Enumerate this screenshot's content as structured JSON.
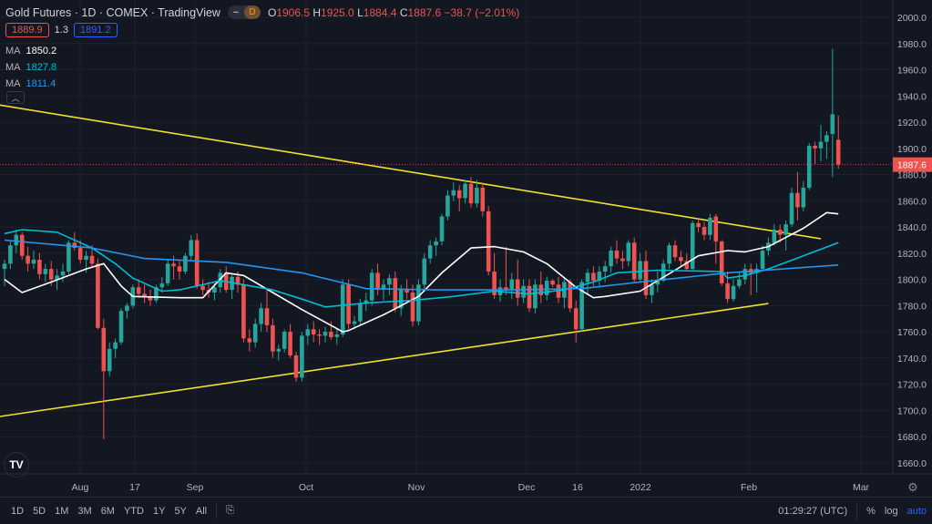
{
  "header": {
    "title": "Gold Futures · 1D · COMEX · TradingView",
    "market_status": "D",
    "open_label": "O",
    "open": "1906.5",
    "high_label": "H",
    "high": "1925.0",
    "low_label": "L",
    "low": "1884.4",
    "close_label": "C",
    "close": "1887.6",
    "change": "−38.7 (−2.01%)"
  },
  "spread": {
    "bid": "1889.9",
    "spread": "1.3",
    "ask": "1891.2"
  },
  "moving_averages": [
    {
      "label": "MA",
      "value": "1850.2",
      "color": "#ffffff"
    },
    {
      "label": "MA",
      "value": "1827.8",
      "color": "#00bcd4"
    },
    {
      "label": "MA",
      "value": "1811.4",
      "color": "#2196f3"
    }
  ],
  "logo": "TV",
  "current_price": "1887.6",
  "colors": {
    "up": "#26a69a",
    "down": "#ef5350",
    "trend": "#f0e130",
    "bg": "#131722"
  },
  "price_ticks": [
    "2000.0",
    "1980.0",
    "1960.0",
    "1940.0",
    "1920.0",
    "1900.0",
    "1880.0",
    "1860.0",
    "1840.0",
    "1820.0",
    "1800.0",
    "1780.0",
    "1760.0",
    "1740.0",
    "1720.0",
    "1700.0",
    "1680.0",
    "1660.0"
  ],
  "time_labels": [
    "Aug",
    "17",
    "Sep",
    "Oct",
    "Nov",
    "Dec",
    "16",
    "2022",
    "Feb",
    "Mar"
  ],
  "toolbar": {
    "ranges": [
      "1D",
      "5D",
      "1M",
      "3M",
      "6M",
      "YTD",
      "1Y",
      "5Y",
      "All"
    ],
    "time": "01:29:27 (UTC)",
    "percent": "%",
    "log": "log",
    "auto": "auto"
  },
  "chart_data": {
    "type": "candlestick",
    "ylim": [
      1660,
      2000
    ],
    "candles": [
      [
        1808,
        1815,
        1795,
        1812
      ],
      [
        1812,
        1830,
        1808,
        1826
      ],
      [
        1826,
        1838,
        1820,
        1834
      ],
      [
        1834,
        1836,
        1815,
        1818
      ],
      [
        1818,
        1825,
        1806,
        1812
      ],
      [
        1812,
        1822,
        1808,
        1815
      ],
      [
        1815,
        1820,
        1800,
        1804
      ],
      [
        1804,
        1812,
        1798,
        1808
      ],
      [
        1808,
        1814,
        1795,
        1800
      ],
      [
        1800,
        1808,
        1792,
        1803
      ],
      [
        1803,
        1812,
        1798,
        1806
      ],
      [
        1806,
        1830,
        1804,
        1828
      ],
      [
        1828,
        1836,
        1822,
        1824
      ],
      [
        1824,
        1830,
        1812,
        1815
      ],
      [
        1815,
        1822,
        1805,
        1818
      ],
      [
        1818,
        1826,
        1810,
        1812
      ],
      [
        1812,
        1816,
        1762,
        1763
      ],
      [
        1763,
        1770,
        1678,
        1730
      ],
      [
        1730,
        1752,
        1726,
        1747
      ],
      [
        1747,
        1755,
        1740,
        1752
      ],
      [
        1752,
        1778,
        1750,
        1776
      ],
      [
        1776,
        1782,
        1770,
        1780
      ],
      [
        1780,
        1796,
        1778,
        1794
      ],
      [
        1794,
        1800,
        1786,
        1789
      ],
      [
        1789,
        1796,
        1782,
        1787
      ],
      [
        1787,
        1792,
        1780,
        1784
      ],
      [
        1784,
        1796,
        1782,
        1794
      ],
      [
        1794,
        1802,
        1790,
        1797
      ],
      [
        1797,
        1815,
        1795,
        1812
      ],
      [
        1812,
        1818,
        1800,
        1810
      ],
      [
        1810,
        1814,
        1800,
        1806
      ],
      [
        1806,
        1820,
        1804,
        1818
      ],
      [
        1818,
        1834,
        1815,
        1830
      ],
      [
        1830,
        1835,
        1793,
        1795
      ],
      [
        1795,
        1800,
        1788,
        1792
      ],
      [
        1792,
        1798,
        1786,
        1790
      ],
      [
        1790,
        1797,
        1784,
        1794
      ],
      [
        1794,
        1808,
        1790,
        1805
      ],
      [
        1805,
        1810,
        1790,
        1792
      ],
      [
        1792,
        1804,
        1785,
        1802
      ],
      [
        1802,
        1806,
        1790,
        1796
      ],
      [
        1796,
        1800,
        1752,
        1755
      ],
      [
        1755,
        1762,
        1745,
        1752
      ],
      [
        1752,
        1770,
        1748,
        1766
      ],
      [
        1766,
        1782,
        1760,
        1778
      ],
      [
        1778,
        1792,
        1760,
        1765
      ],
      [
        1765,
        1770,
        1740,
        1745
      ],
      [
        1745,
        1750,
        1738,
        1747
      ],
      [
        1747,
        1762,
        1744,
        1760
      ],
      [
        1760,
        1766,
        1740,
        1742
      ],
      [
        1742,
        1745,
        1722,
        1725
      ],
      [
        1725,
        1760,
        1722,
        1757
      ],
      [
        1757,
        1766,
        1750,
        1762
      ],
      [
        1762,
        1768,
        1752,
        1758
      ],
      [
        1758,
        1762,
        1750,
        1757
      ],
      [
        1757,
        1764,
        1752,
        1760
      ],
      [
        1760,
        1768,
        1754,
        1756
      ],
      [
        1756,
        1762,
        1750,
        1758
      ],
      [
        1758,
        1800,
        1756,
        1796
      ],
      [
        1796,
        1800,
        1762,
        1766
      ],
      [
        1766,
        1772,
        1762,
        1768
      ],
      [
        1768,
        1785,
        1765,
        1782
      ],
      [
        1782,
        1790,
        1776,
        1784
      ],
      [
        1784,
        1808,
        1780,
        1805
      ],
      [
        1805,
        1812,
        1788,
        1792
      ],
      [
        1792,
        1800,
        1784,
        1796
      ],
      [
        1796,
        1804,
        1788,
        1801
      ],
      [
        1801,
        1806,
        1775,
        1778
      ],
      [
        1778,
        1796,
        1772,
        1792
      ],
      [
        1792,
        1800,
        1785,
        1790
      ],
      [
        1790,
        1796,
        1764,
        1768
      ],
      [
        1768,
        1800,
        1765,
        1796
      ],
      [
        1796,
        1820,
        1792,
        1816
      ],
      [
        1816,
        1830,
        1812,
        1826
      ],
      [
        1826,
        1832,
        1818,
        1829
      ],
      [
        1829,
        1850,
        1826,
        1848
      ],
      [
        1848,
        1868,
        1845,
        1864
      ],
      [
        1864,
        1874,
        1860,
        1868
      ],
      [
        1868,
        1872,
        1852,
        1862
      ],
      [
        1862,
        1876,
        1858,
        1873
      ],
      [
        1873,
        1878,
        1855,
        1858
      ],
      [
        1858,
        1876,
        1855,
        1870
      ],
      [
        1870,
        1874,
        1848,
        1852
      ],
      [
        1852,
        1856,
        1803,
        1806
      ],
      [
        1806,
        1820,
        1785,
        1788
      ],
      [
        1788,
        1800,
        1783,
        1794
      ],
      [
        1794,
        1825,
        1788,
        1792
      ],
      [
        1792,
        1805,
        1785,
        1800
      ],
      [
        1800,
        1815,
        1780,
        1786
      ],
      [
        1786,
        1800,
        1782,
        1795
      ],
      [
        1795,
        1800,
        1775,
        1778
      ],
      [
        1778,
        1800,
        1774,
        1796
      ],
      [
        1796,
        1806,
        1782,
        1788
      ],
      [
        1788,
        1802,
        1784,
        1799
      ],
      [
        1799,
        1800,
        1794,
        1796
      ],
      [
        1796,
        1802,
        1782,
        1786
      ],
      [
        1786,
        1800,
        1778,
        1798
      ],
      [
        1798,
        1800,
        1775,
        1778
      ],
      [
        1778,
        1784,
        1752,
        1762
      ],
      [
        1762,
        1800,
        1760,
        1798
      ],
      [
        1798,
        1808,
        1788,
        1805
      ],
      [
        1805,
        1810,
        1795,
        1799
      ],
      [
        1799,
        1810,
        1794,
        1806
      ],
      [
        1806,
        1814,
        1798,
        1810
      ],
      [
        1810,
        1825,
        1805,
        1822
      ],
      [
        1822,
        1830,
        1812,
        1816
      ],
      [
        1816,
        1822,
        1808,
        1814
      ],
      [
        1814,
        1830,
        1810,
        1828
      ],
      [
        1828,
        1832,
        1798,
        1800
      ],
      [
        1800,
        1820,
        1798,
        1814
      ],
      [
        1814,
        1822,
        1785,
        1788
      ],
      [
        1788,
        1800,
        1782,
        1796
      ],
      [
        1796,
        1806,
        1790,
        1799
      ],
      [
        1799,
        1815,
        1798,
        1812
      ],
      [
        1812,
        1828,
        1808,
        1826
      ],
      [
        1826,
        1830,
        1814,
        1817
      ],
      [
        1817,
        1822,
        1810,
        1814
      ],
      [
        1814,
        1820,
        1806,
        1808
      ],
      [
        1808,
        1845,
        1806,
        1843
      ],
      [
        1843,
        1846,
        1836,
        1840
      ],
      [
        1840,
        1844,
        1830,
        1834
      ],
      [
        1834,
        1850,
        1830,
        1847
      ],
      [
        1848,
        1850,
        1812,
        1829
      ],
      [
        1829,
        1830,
        1795,
        1797
      ],
      [
        1797,
        1806,
        1782,
        1785
      ],
      [
        1785,
        1800,
        1783,
        1795
      ],
      [
        1795,
        1805,
        1793,
        1800
      ],
      [
        1800,
        1812,
        1796,
        1808
      ],
      [
        1808,
        1812,
        1788,
        1805
      ],
      [
        1805,
        1812,
        1790,
        1808
      ],
      [
        1808,
        1826,
        1806,
        1822
      ],
      [
        1822,
        1832,
        1818,
        1828
      ],
      [
        1828,
        1842,
        1826,
        1838
      ],
      [
        1838,
        1842,
        1828,
        1834
      ],
      [
        1834,
        1845,
        1822,
        1842
      ],
      [
        1842,
        1870,
        1840,
        1866
      ],
      [
        1866,
        1882,
        1845,
        1855
      ],
      [
        1855,
        1875,
        1852,
        1870
      ],
      [
        1870,
        1904,
        1868,
        1902
      ],
      [
        1902,
        1905,
        1888,
        1900
      ],
      [
        1900,
        1918,
        1890,
        1905
      ],
      [
        1905,
        1913,
        1892,
        1910
      ],
      [
        1911,
        1976,
        1878,
        1926
      ],
      [
        1906.5,
        1925,
        1884.4,
        1887.6
      ]
    ],
    "ma_series": [
      {
        "name": "MA fast",
        "color": "#ffffff",
        "points": [
          [
            0,
            1800
          ],
          [
            3,
            1790
          ],
          [
            8,
            1798
          ],
          [
            14,
            1808
          ],
          [
            17,
            1812
          ],
          [
            20,
            1795
          ],
          [
            22,
            1787
          ],
          [
            30,
            1786
          ],
          [
            34,
            1786
          ],
          [
            38,
            1805
          ],
          [
            41,
            1803
          ],
          [
            46,
            1790
          ],
          [
            51,
            1777
          ],
          [
            58,
            1760
          ],
          [
            59,
            1761
          ],
          [
            65,
            1773
          ],
          [
            71,
            1787
          ],
          [
            75,
            1805
          ],
          [
            80,
            1824
          ],
          [
            84,
            1825
          ],
          [
            89,
            1821
          ],
          [
            93,
            1812
          ],
          [
            98,
            1794
          ],
          [
            101,
            1786
          ],
          [
            103,
            1787
          ],
          [
            109,
            1791
          ],
          [
            115,
            1807
          ],
          [
            119,
            1818
          ],
          [
            124,
            1822
          ],
          [
            127,
            1821
          ],
          [
            131,
            1825
          ],
          [
            137,
            1839
          ],
          [
            141,
            1851
          ],
          [
            143,
            1850
          ]
        ]
      },
      {
        "name": "MA mid",
        "color": "#00bcd4",
        "points": [
          [
            0,
            1835
          ],
          [
            3,
            1838
          ],
          [
            9,
            1836
          ],
          [
            15,
            1824
          ],
          [
            19,
            1812
          ],
          [
            22,
            1801
          ],
          [
            27,
            1791
          ],
          [
            30,
            1792
          ],
          [
            37,
            1799
          ],
          [
            41,
            1796
          ],
          [
            46,
            1792
          ],
          [
            51,
            1785
          ],
          [
            55,
            1779
          ],
          [
            62,
            1782
          ],
          [
            70,
            1784
          ],
          [
            77,
            1787
          ],
          [
            84,
            1791
          ],
          [
            90,
            1789
          ],
          [
            96,
            1792
          ],
          [
            101,
            1798
          ],
          [
            105,
            1805
          ],
          [
            112,
            1807
          ],
          [
            123,
            1806
          ],
          [
            124,
            1801
          ],
          [
            127,
            1803
          ],
          [
            131,
            1808
          ],
          [
            137,
            1818
          ],
          [
            143,
            1828
          ]
        ]
      },
      {
        "name": "MA slow",
        "color": "#2196f3",
        "points": [
          [
            0,
            1830
          ],
          [
            15,
            1824
          ],
          [
            24,
            1816
          ],
          [
            38,
            1813
          ],
          [
            51,
            1805
          ],
          [
            62,
            1793
          ],
          [
            74,
            1792
          ],
          [
            87,
            1792
          ],
          [
            99,
            1793
          ],
          [
            109,
            1798
          ],
          [
            124,
            1805
          ],
          [
            143,
            1811
          ]
        ]
      }
    ],
    "trendlines": [
      {
        "from": [
          -0.8,
          1933
        ],
        "to": [
          140,
          1831
        ]
      },
      {
        "from": [
          -0.8,
          1695.4
        ],
        "to": [
          131,
          1781.6
        ]
      }
    ]
  }
}
